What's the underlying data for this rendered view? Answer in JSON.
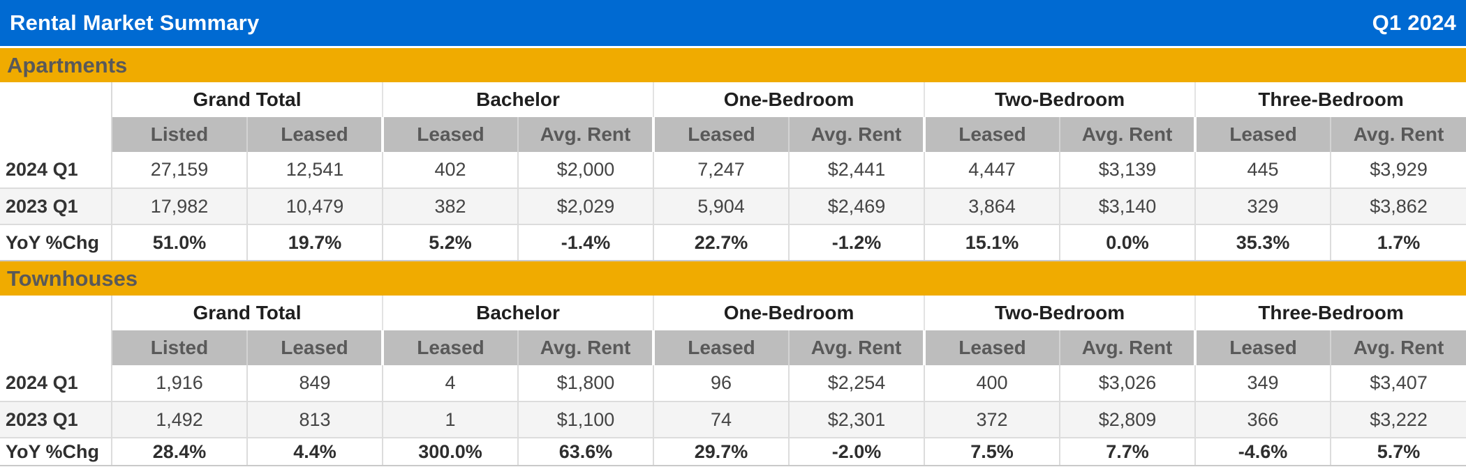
{
  "title_bar": {
    "title": "Rental Market Summary",
    "period": "Q1 2024"
  },
  "colors": {
    "title_bar_bg": "#006AD2",
    "section_band_bg": "#F0AB00",
    "subheader_bg": "#BDBDBD",
    "stripe_row_bg": "#F4F4F4",
    "title_text": "#FFFFFF",
    "section_text": "#595959",
    "data_text": "#444444"
  },
  "chart_data": [
    {
      "type": "table",
      "section": "Apartments",
      "column_groups": [
        "Grand Total",
        "Bachelor",
        "One-Bedroom",
        "Two-Bedroom",
        "Three-Bedroom"
      ],
      "sub_columns": [
        "Listed",
        "Leased",
        "Leased",
        "Avg. Rent",
        "Leased",
        "Avg. Rent",
        "Leased",
        "Avg. Rent",
        "Leased",
        "Avg. Rent"
      ],
      "row_labels": [
        "2024 Q1",
        "2023 Q1",
        "YoY %Chg"
      ],
      "rows": [
        [
          "27,159",
          "12,541",
          "402",
          "$2,000",
          "7,247",
          "$2,441",
          "4,447",
          "$3,139",
          "445",
          "$3,929"
        ],
        [
          "17,982",
          "10,479",
          "382",
          "$2,029",
          "5,904",
          "$2,469",
          "3,864",
          "$3,140",
          "329",
          "$3,862"
        ],
        [
          "51.0%",
          "19.7%",
          "5.2%",
          "-1.4%",
          "22.7%",
          "-1.2%",
          "15.1%",
          "0.0%",
          "35.3%",
          "1.7%"
        ]
      ]
    },
    {
      "type": "table",
      "section": "Townhouses",
      "column_groups": [
        "Grand Total",
        "Bachelor",
        "One-Bedroom",
        "Two-Bedroom",
        "Three-Bedroom"
      ],
      "sub_columns": [
        "Listed",
        "Leased",
        "Leased",
        "Avg. Rent",
        "Leased",
        "Avg. Rent",
        "Leased",
        "Avg. Rent",
        "Leased",
        "Avg. Rent"
      ],
      "row_labels": [
        "2024 Q1",
        "2023 Q1",
        "YoY %Chg"
      ],
      "rows": [
        [
          "1,916",
          "849",
          "4",
          "$1,800",
          "96",
          "$2,254",
          "400",
          "$3,026",
          "349",
          "$3,407"
        ],
        [
          "1,492",
          "813",
          "1",
          "$1,100",
          "74",
          "$2,301",
          "372",
          "$2,809",
          "366",
          "$3,222"
        ],
        [
          "28.4%",
          "4.4%",
          "300.0%",
          "63.6%",
          "29.7%",
          "-2.0%",
          "7.5%",
          "7.7%",
          "-4.6%",
          "5.7%"
        ]
      ]
    }
  ]
}
